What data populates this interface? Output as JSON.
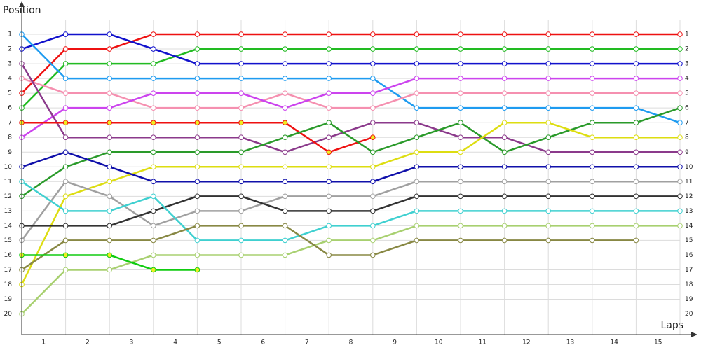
{
  "chart_data": {
    "type": "line",
    "ylabel": "Position",
    "xlabel": "Laps",
    "xlim": [
      0,
      15
    ],
    "ylim": [
      21.4,
      0
    ],
    "xticks": [
      {
        "value": 0.5,
        "label": "1"
      },
      {
        "value": 1.5,
        "label": "2"
      },
      {
        "value": 2.5,
        "label": "3"
      },
      {
        "value": 3.5,
        "label": "4"
      },
      {
        "value": 4.5,
        "label": "5"
      },
      {
        "value": 5.5,
        "label": "6"
      },
      {
        "value": 6.5,
        "label": "7"
      },
      {
        "value": 7.5,
        "label": "8"
      },
      {
        "value": 8.5,
        "label": "9"
      },
      {
        "value": 9.5,
        "label": "10"
      },
      {
        "value": 10.5,
        "label": "11"
      },
      {
        "value": 11.5,
        "label": "12"
      },
      {
        "value": 12.5,
        "label": "13"
      },
      {
        "value": 13.5,
        "label": "14"
      },
      {
        "value": 14.5,
        "label": "15"
      }
    ],
    "yticks": [
      1,
      2,
      3,
      4,
      5,
      6,
      7,
      8,
      9,
      10,
      11,
      12,
      13,
      14,
      15,
      16,
      17,
      18,
      19,
      20
    ],
    "grid": true,
    "series": [
      {
        "color": "#ee1111",
        "values": [
          5,
          2,
          2,
          1,
          1,
          1,
          1,
          1,
          1,
          1,
          1,
          1,
          1,
          1,
          1,
          1
        ]
      },
      {
        "color": "#22bb22",
        "values": [
          6,
          3,
          3,
          3,
          2,
          2,
          2,
          2,
          2,
          2,
          2,
          2,
          2,
          2,
          2,
          2
        ]
      },
      {
        "color": "#1111cc",
        "values": [
          2,
          1,
          1,
          2,
          3,
          3,
          3,
          3,
          3,
          3,
          3,
          3,
          3,
          3,
          3,
          3
        ]
      },
      {
        "color": "#1e9bf0",
        "values": [
          1,
          4,
          4,
          4,
          4,
          4,
          4,
          4,
          4,
          6,
          6,
          6,
          6,
          6,
          6,
          7
        ]
      },
      {
        "color": "#f590b0",
        "values": [
          4,
          5,
          5,
          6,
          6,
          6,
          5,
          6,
          6,
          5,
          5,
          5,
          5,
          5,
          5,
          5
        ]
      },
      {
        "color": "#cc44ee",
        "values": [
          8,
          6,
          6,
          5,
          5,
          5,
          6,
          5,
          5,
          4,
          4,
          4,
          4,
          4,
          4,
          4
        ]
      },
      {
        "color": "#8b3a8b",
        "values": [
          3,
          8,
          8,
          8,
          8,
          8,
          9,
          8,
          7,
          7,
          8,
          8,
          9,
          9,
          9,
          9
        ]
      },
      {
        "color": "#ee1111",
        "marker_fill": "#eeee22",
        "values": [
          7,
          7,
          7,
          7,
          7,
          7,
          7,
          9,
          8,
          null,
          null,
          null,
          null,
          null,
          null,
          null
        ]
      },
      {
        "color": "#2a9a2a",
        "values": [
          12,
          10,
          9,
          9,
          9,
          9,
          8,
          7,
          9,
          8,
          7,
          9,
          8,
          7,
          7,
          6
        ]
      },
      {
        "color": "#dddd11",
        "values": [
          18,
          12,
          11,
          10,
          10,
          10,
          10,
          10,
          10,
          9,
          9,
          7,
          7,
          8,
          8,
          8
        ]
      },
      {
        "color": "#1010aa",
        "values": [
          10,
          9,
          10,
          11,
          11,
          11,
          11,
          11,
          11,
          10,
          10,
          10,
          10,
          10,
          10,
          10
        ]
      },
      {
        "color": "#a0a0a0",
        "values": [
          15,
          11,
          12,
          14,
          13,
          13,
          12,
          12,
          12,
          11,
          11,
          11,
          11,
          11,
          11,
          11
        ]
      },
      {
        "color": "#333333",
        "values": [
          14,
          14,
          14,
          13,
          12,
          12,
          13,
          13,
          13,
          12,
          12,
          12,
          12,
          12,
          12,
          12
        ]
      },
      {
        "color": "#40d0d0",
        "values": [
          11,
          13,
          13,
          12,
          15,
          15,
          15,
          14,
          14,
          13,
          13,
          13,
          13,
          13,
          13,
          13
        ]
      },
      {
        "color": "#a8d070",
        "values": [
          20,
          17,
          17,
          16,
          16,
          16,
          16,
          15,
          15,
          14,
          14,
          14,
          14,
          14,
          14,
          14
        ]
      },
      {
        "color": "#888844",
        "values": [
          17,
          15,
          15,
          15,
          14,
          14,
          14,
          16,
          16,
          15,
          15,
          15,
          15,
          15,
          15,
          null
        ]
      },
      {
        "color": "#11cc11",
        "marker_fill": "#eeee22",
        "values": [
          16,
          16,
          16,
          17,
          17,
          null,
          null,
          null,
          null,
          null,
          null,
          null,
          null,
          null,
          null,
          null
        ]
      }
    ]
  }
}
